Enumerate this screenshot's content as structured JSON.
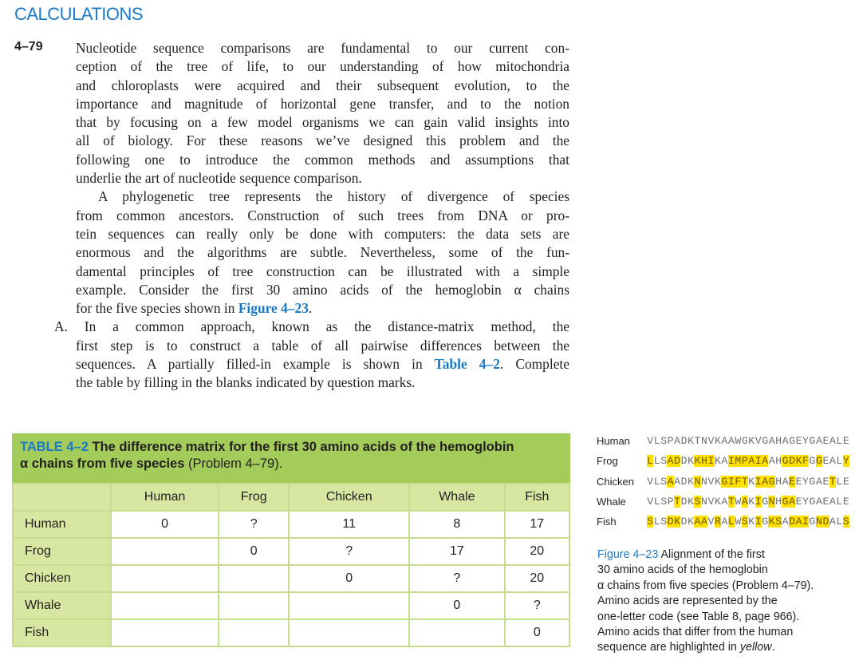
{
  "section_heading": "CALCULATIONS",
  "problem": {
    "number": "4–79",
    "lines": [
      {
        "text": "Nucleotide sequence comparisons are fundamental to our current con-"
      },
      {
        "text": "ception of the tree of life, to our understanding of how mitochondria"
      },
      {
        "text": "and chloroplasts were acquired and their subsequent evolution, to the"
      },
      {
        "text": "importance and magnitude of horizontal gene transfer, and to the notion"
      },
      {
        "text": "that by focusing on a few model organisms we can gain valid insights into"
      },
      {
        "text": "all of biology. For these reasons we’ve designed this problem and the"
      },
      {
        "text": "following one to introduce the common methods and assumptions that"
      },
      {
        "text": "underlie the art of nucleotide sequence comparison."
      },
      {
        "text": "A phylogenetic tree represents the history of divergence of species"
      },
      {
        "text": "from common ancestors. Construction of such trees from DNA or pro-"
      },
      {
        "text": "tein sequences can really only be done with computers: the data sets are"
      },
      {
        "text": "enormous and the algorithms are subtle. Nevertheless, some of the fun-"
      },
      {
        "text": "damental principles of tree construction can be illustrated with a simple"
      },
      {
        "text": "example. Consider the first 30 amino acids of the hemoglobin α chains"
      },
      {
        "text": "for the five species shown in ",
        "link": "Figure 4–23",
        "post": "."
      },
      {
        "text": "A. In a common approach, known as the distance-matrix method, the"
      },
      {
        "text": "first step is to construct a table of all pairwise differences between the"
      },
      {
        "text": "sequences. A partially filled-in example is shown in ",
        "link": "Table 4–2",
        "post": ". Complete"
      },
      {
        "text": "the table by filling in the blanks indicated by question marks."
      }
    ]
  },
  "table": {
    "label": "TABLE 4–2",
    "title_bold_1": " The difference matrix for the first 30 amino acids of the hemoglobin",
    "title_bold_2": "α chains from five species",
    "title_plain": " (Problem 4–79).",
    "columns": [
      "Human",
      "Frog",
      "Chicken",
      "Whale",
      "Fish"
    ],
    "rows": [
      {
        "label": "Human",
        "cells": [
          "0",
          "?",
          "11",
          "8",
          "17"
        ]
      },
      {
        "label": "Frog",
        "cells": [
          "",
          "0",
          "?",
          "17",
          "20"
        ]
      },
      {
        "label": "Chicken",
        "cells": [
          "",
          "",
          "0",
          "?",
          "20"
        ]
      },
      {
        "label": "Whale",
        "cells": [
          "",
          "",
          "",
          "0",
          "?"
        ]
      },
      {
        "label": "Fish",
        "cells": [
          "",
          "",
          "",
          "",
          "0"
        ]
      }
    ]
  },
  "figure": {
    "highlight_color": "#ffe000",
    "sequences": [
      {
        "species": "Human",
        "seq": "VLSPADKTNVKAAWGKVGAHAGEYGAEALE"
      },
      {
        "species": "Frog",
        "seq": "LLSADDKKHIKAIMPAIAAHGDKFGGEALY"
      },
      {
        "species": "Chicken",
        "seq": "VLSAADKNNVKGIFTKIAGHAEEYGAETLE"
      },
      {
        "species": "Whale",
        "seq": "VLSPTDKSNVKATWAKIGNHGAEYGAEALE"
      },
      {
        "species": "Fish",
        "seq": "SLSDKDKAAVRALWSKIGKSADAIGNDALS"
      }
    ],
    "caption_label": "Figure 4–23",
    "caption_lines": [
      " Alignment of the first",
      "30 amino acids of the hemoglobin",
      "α chains from five species (Problem 4–79).",
      "Amino acids are represented by the",
      "one-letter code (see Table 8, page 966).",
      "Amino acids that differ from the human",
      "sequence are highlighted in "
    ],
    "caption_italic": "yellow",
    "caption_end": "."
  }
}
